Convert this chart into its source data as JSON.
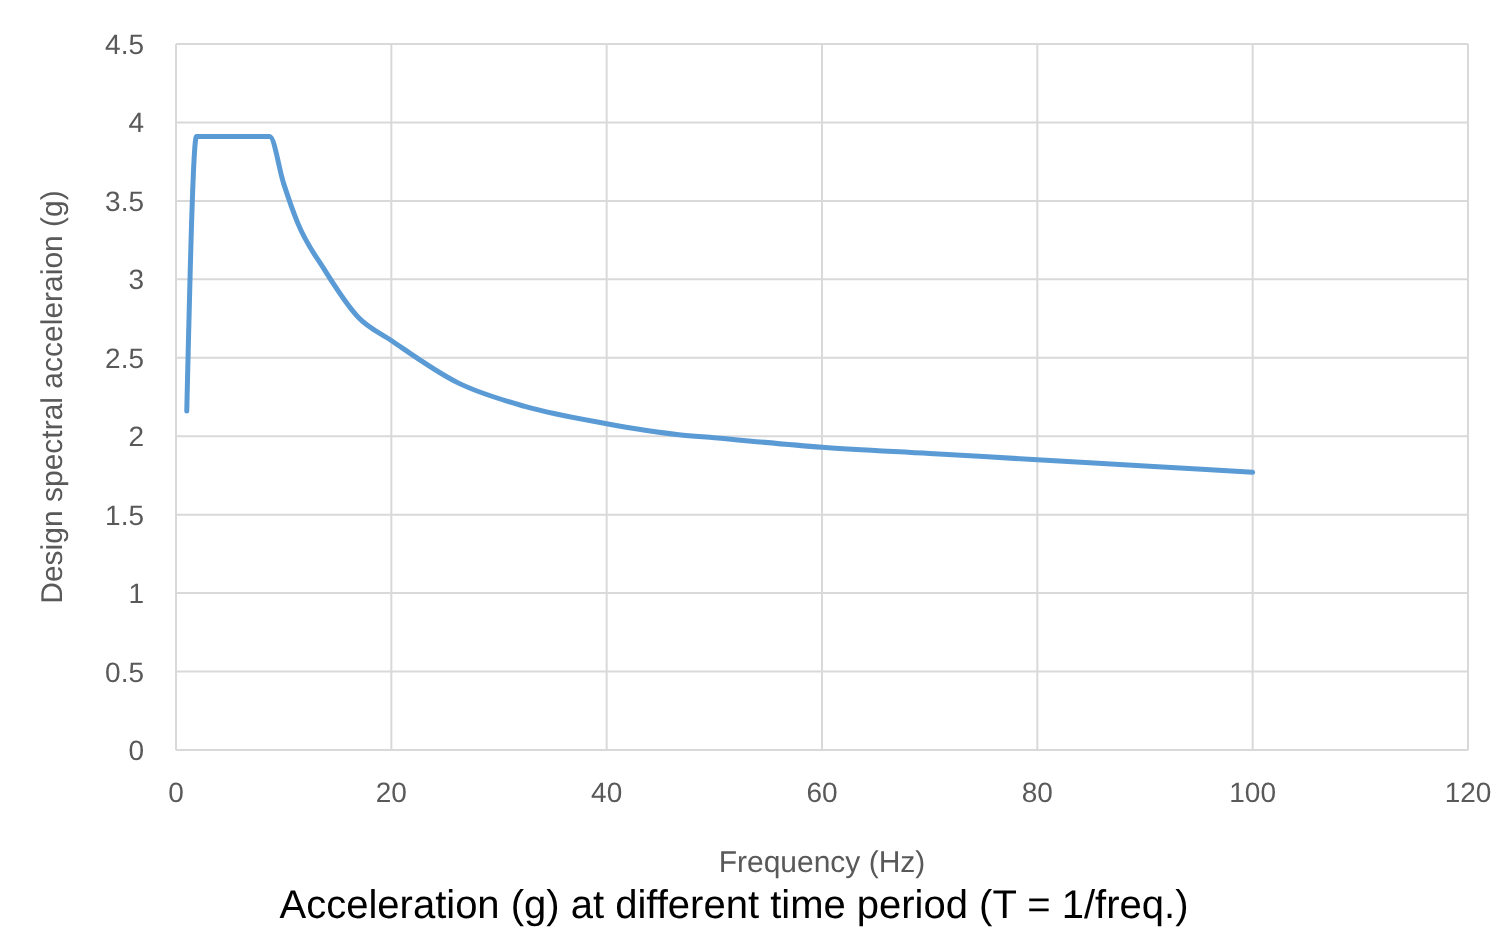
{
  "chart_data": {
    "type": "line",
    "title": "Acceleration (g) at different time period (T = 1/freq.)",
    "xlabel": "Frequency (Hz)",
    "ylabel": "Design spectral acceleraion (g)",
    "series": [
      {
        "color": "#5b9bd5",
        "x": [
          1,
          1.9,
          5,
          8.7,
          10,
          11.3,
          13.8,
          16.9,
          20,
          26.2,
          32.4,
          40,
          46.7,
          50,
          60,
          70,
          80,
          90,
          100
        ],
        "values": [
          2.16,
          3.91,
          3.91,
          3.91,
          3.61,
          3.36,
          3.06,
          2.76,
          2.61,
          2.34,
          2.19,
          2.08,
          2.01,
          1.99,
          1.93,
          1.89,
          1.85,
          1.81,
          1.77
        ]
      }
    ],
    "xlim": [
      0,
      120
    ],
    "xticks": [
      0,
      20,
      40,
      60,
      80,
      100,
      120
    ],
    "ylim": [
      0,
      4.5
    ],
    "yticks": [
      0,
      0.5,
      1,
      1.5,
      2,
      2.5,
      3,
      3.5,
      4,
      4.5
    ],
    "grid": true,
    "marker": "none",
    "line_style": "solid"
  }
}
